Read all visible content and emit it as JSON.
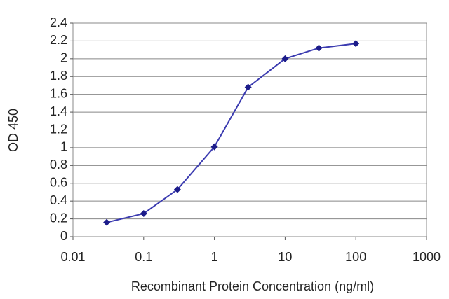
{
  "chart_data": {
    "type": "line",
    "x_label": "Recombinant Protein Concentration (ng/ml)",
    "y_label": "OD 450",
    "x": [
      0.03,
      0.1,
      0.3,
      1,
      3,
      10,
      30,
      100
    ],
    "values": [
      0.16,
      0.26,
      0.53,
      1.01,
      1.68,
      2.0,
      2.12,
      2.17
    ],
    "color": "#3b3bb0",
    "marker_color": "#1c1c8a",
    "xlim": [
      0.01,
      1000
    ],
    "xticks": [
      0.01,
      0.1,
      1,
      10,
      100,
      1000
    ],
    "log_x": true,
    "ylim": [
      0,
      2.4
    ],
    "yticks": [
      0,
      0.2,
      0.4,
      0.6,
      0.8,
      1,
      1.2,
      1.4,
      1.6,
      1.8,
      2,
      2.2,
      2.4
    ],
    "grid": true
  }
}
